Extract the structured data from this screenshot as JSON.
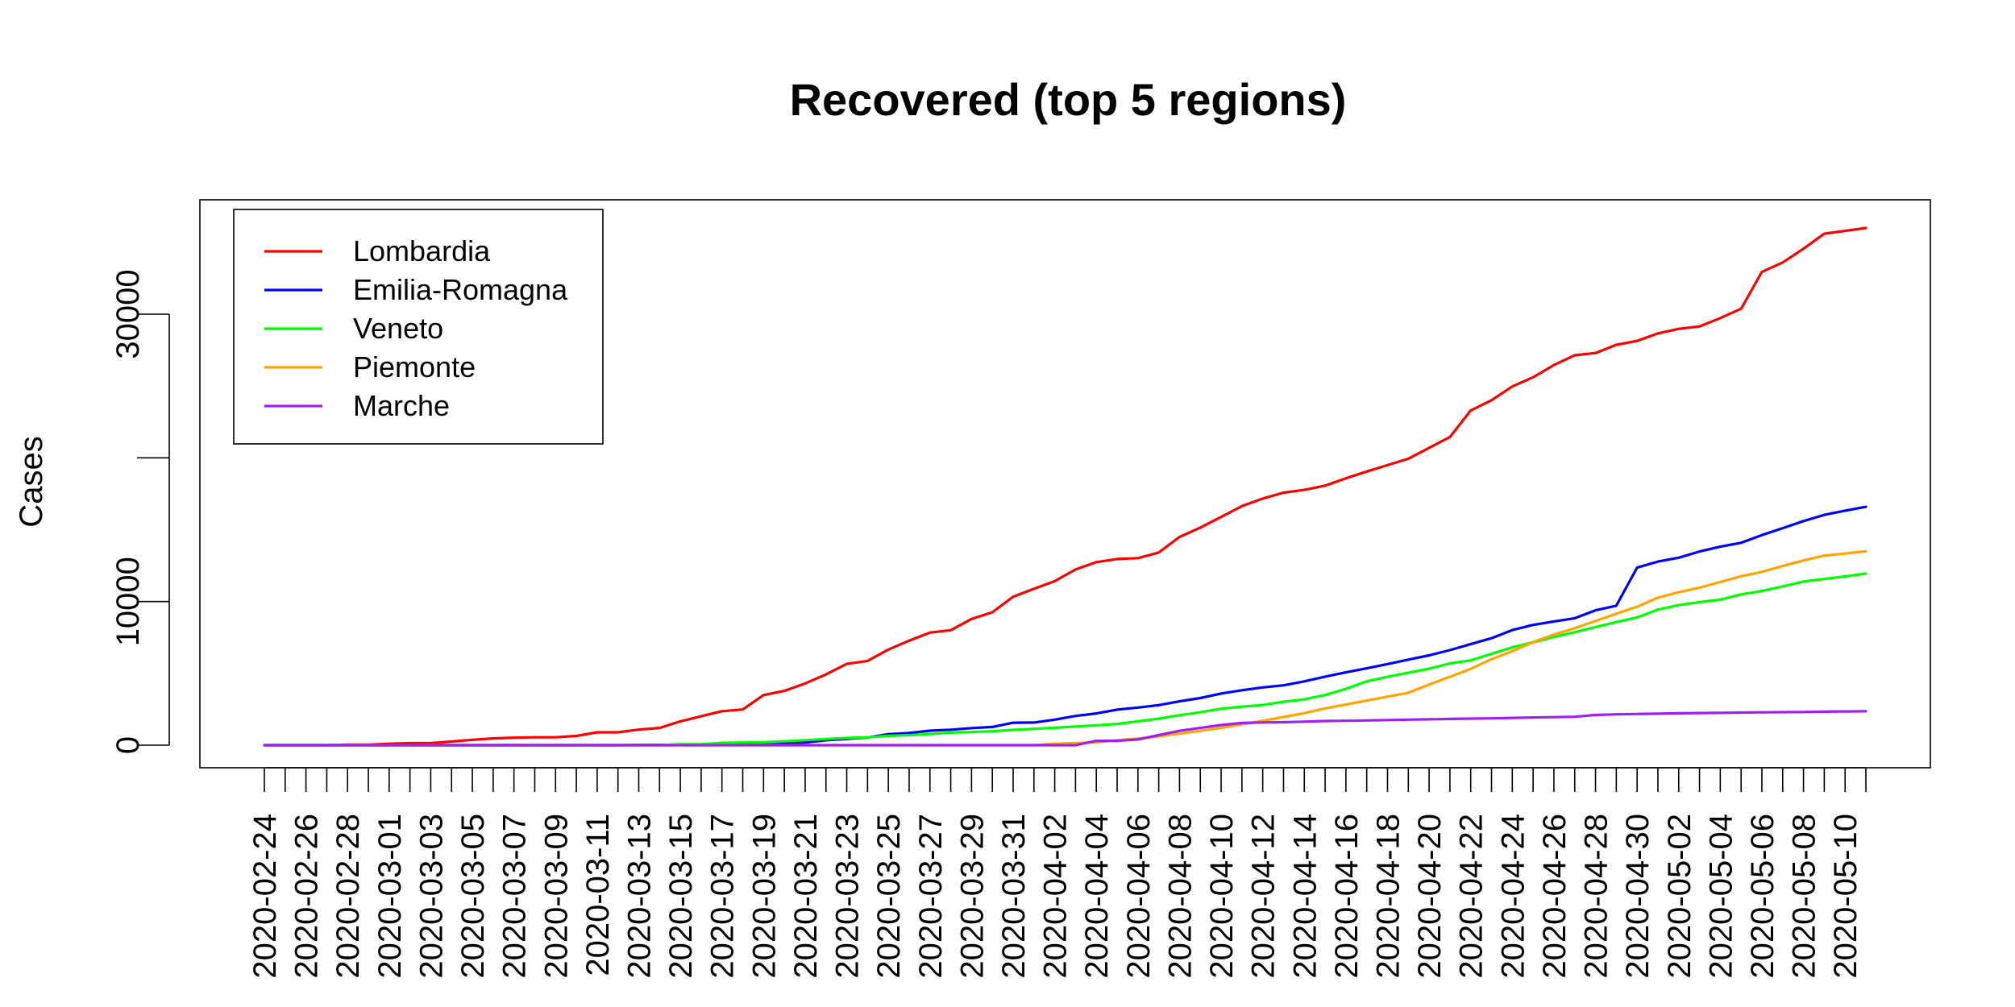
{
  "chart_data": {
    "type": "line",
    "title": "Recovered (top 5 regions)",
    "xlabel": "",
    "ylabel": "Cases",
    "ylim": [
      -1350,
      37800
    ],
    "y_ticks": [
      0,
      10000,
      30000
    ],
    "y_tick_labels": [
      "0",
      "10000",
      "30000"
    ],
    "y_minor_ticks": [
      20000
    ],
    "grid": false,
    "legend_position": "top-left",
    "x": [
      "2020-02-24",
      "2020-02-25",
      "2020-02-26",
      "2020-02-27",
      "2020-02-28",
      "2020-02-29",
      "2020-03-01",
      "2020-03-02",
      "2020-03-03",
      "2020-03-04",
      "2020-03-05",
      "2020-03-06",
      "2020-03-07",
      "2020-03-08",
      "2020-03-09",
      "2020-03-10",
      "2020-03-11",
      "2020-03-12",
      "2020-03-13",
      "2020-03-14",
      "2020-03-15",
      "2020-03-16",
      "2020-03-17",
      "2020-03-18",
      "2020-03-19",
      "2020-03-20",
      "2020-03-21",
      "2020-03-22",
      "2020-03-23",
      "2020-03-24",
      "2020-03-25",
      "2020-03-26",
      "2020-03-27",
      "2020-03-28",
      "2020-03-29",
      "2020-03-30",
      "2020-03-31",
      "2020-04-01",
      "2020-04-02",
      "2020-04-03",
      "2020-04-04",
      "2020-04-05",
      "2020-04-06",
      "2020-04-07",
      "2020-04-08",
      "2020-04-09",
      "2020-04-10",
      "2020-04-11",
      "2020-04-12",
      "2020-04-13",
      "2020-04-14",
      "2020-04-15",
      "2020-04-16",
      "2020-04-17",
      "2020-04-18",
      "2020-04-19",
      "2020-04-20",
      "2020-04-21",
      "2020-04-22",
      "2020-04-23",
      "2020-04-24",
      "2020-04-25",
      "2020-04-26",
      "2020-04-27",
      "2020-04-28",
      "2020-04-29",
      "2020-04-30",
      "2020-05-01",
      "2020-05-02",
      "2020-05-03",
      "2020-05-04",
      "2020-05-05",
      "2020-05-06",
      "2020-05-07",
      "2020-05-08",
      "2020-05-09",
      "2020-05-10",
      "2020-05-11"
    ],
    "x_tick_labels": [
      "2020-02-24",
      "2020-02-26",
      "2020-02-28",
      "2020-03-01",
      "2020-03-03",
      "2020-03-05",
      "2020-03-07",
      "2020-03-09",
      "2020-03-11",
      "2020-03-13",
      "2020-03-15",
      "2020-03-17",
      "2020-03-19",
      "2020-03-21",
      "2020-03-23",
      "2020-03-25",
      "2020-03-27",
      "2020-03-29",
      "2020-03-31",
      "2020-04-02",
      "2020-04-04",
      "2020-04-06",
      "2020-04-08",
      "2020-04-10",
      "2020-04-12",
      "2020-04-14",
      "2020-04-16",
      "2020-04-18",
      "2020-04-20",
      "2020-04-22",
      "2020-04-24",
      "2020-04-26",
      "2020-04-28",
      "2020-04-30",
      "2020-05-02",
      "2020-05-04",
      "2020-05-06",
      "2020-05-08",
      "2020-05-10"
    ],
    "series": [
      {
        "name": "Lombardia",
        "color": "#ff0000",
        "values": [
          0,
          0,
          0,
          0,
          40,
          40,
          100,
          139,
          139,
          250,
          376,
          469,
          524,
          550,
          550,
          646,
          900,
          900,
          1085,
          1198,
          1660,
          2011,
          2368,
          2485,
          3488,
          3778,
          4295,
          4926,
          5657,
          5865,
          6657,
          7281,
          7839,
          8001,
          8785,
          9255,
          10337,
          10885,
          11415,
          12229,
          12740,
          12960,
          13020,
          13410,
          14498,
          15147,
          15886,
          16640,
          17166,
          17580,
          17770,
          18070,
          18580,
          19050,
          19490,
          19940,
          20700,
          21450,
          23300,
          24010,
          24970,
          25610,
          26460,
          27140,
          27300,
          27870,
          28140,
          28660,
          28980,
          29150,
          29730,
          30380,
          32950,
          33600,
          34560,
          35600,
          35800,
          36000
        ]
      },
      {
        "name": "Emilia-Romagna",
        "color": "#0000ff",
        "values": [
          0,
          0,
          0,
          0,
          0,
          0,
          0,
          0,
          0,
          0,
          2,
          2,
          2,
          2,
          2,
          2,
          2,
          2,
          23,
          23,
          23,
          42,
          42,
          52,
          93,
          145,
          186,
          340,
          432,
          539,
          766,
          844,
          1008,
          1076,
          1190,
          1269,
          1562,
          1577,
          1777,
          2033,
          2211,
          2472,
          2618,
          2785,
          3052,
          3279,
          3595,
          3824,
          4020,
          4169,
          4440,
          4771,
          5068,
          5347,
          5648,
          5954,
          6253,
          6619,
          7033,
          7446,
          8014,
          8373,
          8612,
          8837,
          9386,
          9707,
          12358,
          12779,
          13050,
          13478,
          13818,
          14084,
          14626,
          15106,
          15598,
          16030,
          16325,
          16590
        ]
      },
      {
        "name": "Veneto",
        "color": "#00ff00",
        "values": [
          0,
          0,
          0,
          0,
          0,
          0,
          0,
          0,
          0,
          0,
          0,
          0,
          0,
          0,
          0,
          0,
          0,
          0,
          0,
          0,
          60,
          60,
          160,
          186,
          204,
          268,
          347,
          434,
          502,
          550,
          653,
          703,
          775,
          876,
          919,
          971,
          1067,
          1138,
          1213,
          1299,
          1387,
          1482,
          1658,
          1847,
          2085,
          2292,
          2542,
          2682,
          2800,
          3025,
          3188,
          3492,
          3926,
          4441,
          4760,
          5040,
          5328,
          5694,
          5905,
          6365,
          6806,
          7158,
          7530,
          7869,
          8221,
          8569,
          8893,
          9434,
          9753,
          9957,
          10134,
          10499,
          10730,
          11053,
          11386,
          11568,
          11745,
          11950
        ]
      },
      {
        "name": "Piemonte",
        "color": "#ffa500",
        "values": [
          0,
          0,
          0,
          0,
          0,
          0,
          0,
          0,
          0,
          0,
          0,
          0,
          0,
          0,
          0,
          0,
          0,
          0,
          0,
          0,
          0,
          0,
          0,
          0,
          0,
          0,
          0,
          0,
          0,
          0,
          0,
          0,
          0,
          0,
          0,
          0,
          0,
          0,
          100,
          150,
          200,
          350,
          460,
          610,
          800,
          1000,
          1200,
          1450,
          1700,
          1960,
          2230,
          2560,
          2830,
          3100,
          3380,
          3650,
          4220,
          4760,
          5310,
          5990,
          6540,
          7180,
          7700,
          8140,
          8640,
          9150,
          9640,
          10270,
          10650,
          10960,
          11360,
          11760,
          12070,
          12470,
          12860,
          13200,
          13340,
          13500
        ]
      },
      {
        "name": "Marche",
        "color": "#a020f0",
        "values": [
          0,
          0,
          0,
          0,
          0,
          0,
          0,
          0,
          0,
          0,
          0,
          0,
          0,
          0,
          0,
          0,
          0,
          0,
          0,
          0,
          0,
          0,
          0,
          0,
          0,
          0,
          0,
          0,
          0,
          0,
          0,
          0,
          0,
          0,
          0,
          0,
          0,
          0,
          0,
          0,
          300,
          300,
          400,
          700,
          1000,
          1200,
          1400,
          1550,
          1580,
          1600,
          1640,
          1680,
          1700,
          1720,
          1750,
          1780,
          1800,
          1830,
          1850,
          1870,
          1900,
          1930,
          1950,
          1980,
          2100,
          2150,
          2170,
          2190,
          2220,
          2240,
          2250,
          2270,
          2290,
          2300,
          2310,
          2330,
          2350,
          2360
        ]
      }
    ]
  }
}
